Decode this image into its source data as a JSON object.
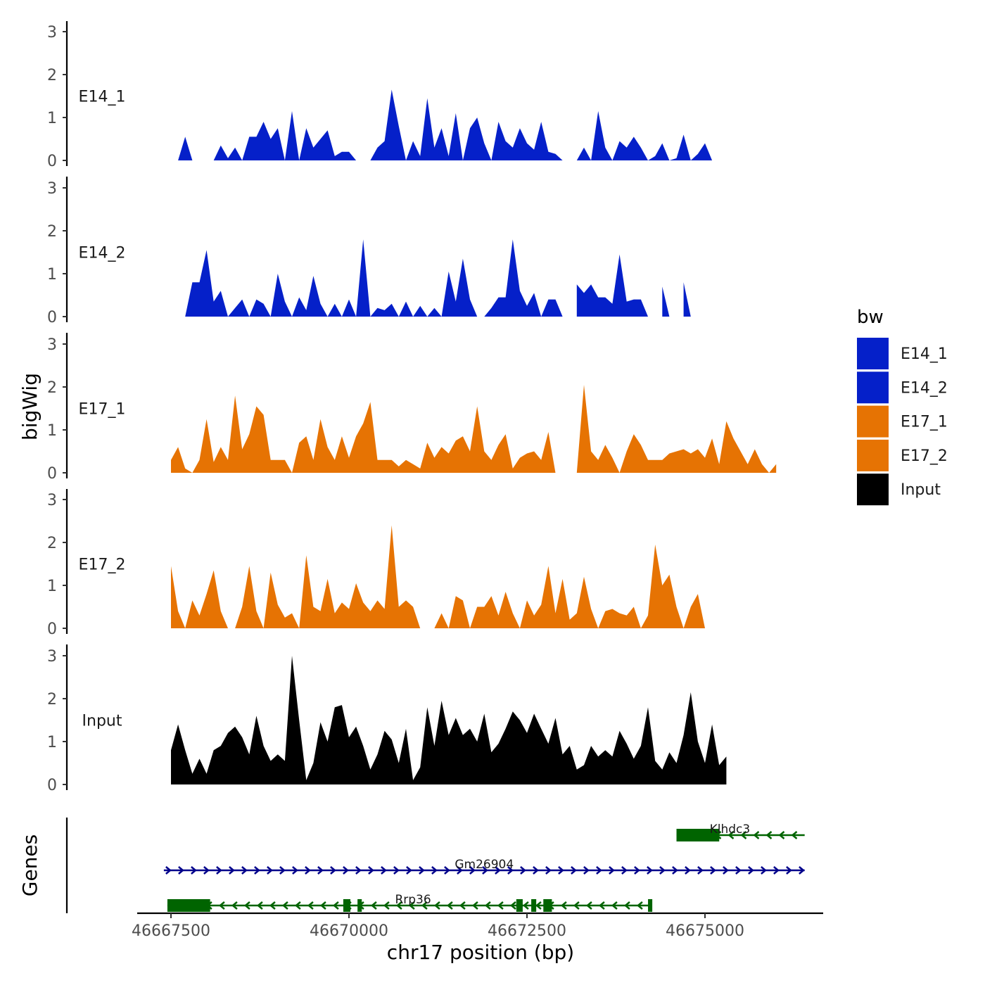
{
  "chart_data": {
    "type": "area",
    "title": "",
    "ylabel": "bigWig",
    "xlabel": "chr17 position (bp)",
    "xlim": [
      46667300,
      46676600
    ],
    "ylim": [
      0,
      3.2
    ],
    "y_ticks": [
      "0",
      "1",
      "2",
      "3"
    ],
    "x_ticks": [
      {
        "value": 46667500,
        "label": "46667500"
      },
      {
        "value": 46670000,
        "label": "46670000"
      },
      {
        "value": 46672500,
        "label": "46672500"
      },
      {
        "value": 46675000,
        "label": "46675000"
      }
    ],
    "legend": {
      "title": "bw",
      "placement": "right",
      "entries": [
        {
          "label": "E14_1",
          "color": "#0520C9"
        },
        {
          "label": "E14_2",
          "color": "#0520C9"
        },
        {
          "label": "E17_1",
          "color": "#E67303"
        },
        {
          "label": "E17_2",
          "color": "#E67303"
        },
        {
          "label": "Input",
          "color": "#000000"
        }
      ]
    },
    "x_positions": [
      46667500,
      46667600,
      46667700,
      46667800,
      46667900,
      46668000,
      46668100,
      46668200,
      46668300,
      46668400,
      46668500,
      46668600,
      46668700,
      46668800,
      46668900,
      46669000,
      46669100,
      46669200,
      46669300,
      46669400,
      46669500,
      46669600,
      46669700,
      46669800,
      46669900,
      46670000,
      46670100,
      46670200,
      46670300,
      46670400,
      46670500,
      46670600,
      46670700,
      46670800,
      46670900,
      46671000,
      46671100,
      46671200,
      46671300,
      46671400,
      46671500,
      46671600,
      46671700,
      46671800,
      46671900,
      46672000,
      46672100,
      46672200,
      46672300,
      46672400,
      46672500,
      46672600,
      46672700,
      46672800,
      46672900,
      46673000,
      46673100,
      46673200,
      46673300,
      46673400,
      46673500,
      46673600,
      46673700,
      46673800,
      46673900,
      46674000,
      46674100,
      46674200,
      46674300,
      46674400,
      46674500,
      46674600,
      46674700,
      46674800,
      46674900,
      46675000,
      46675100,
      46675200,
      46675300,
      46675400,
      46675500,
      46675600,
      46675700,
      46675800,
      46675900,
      46676000,
      46676100,
      46676200,
      46676300
    ],
    "series": [
      {
        "name": "E14_1",
        "color": "#0520C9",
        "values": [
          null,
          0.0,
          0.55,
          0.0,
          null,
          null,
          0.0,
          0.35,
          0.05,
          0.3,
          0.0,
          0.55,
          0.55,
          0.9,
          0.5,
          0.75,
          0.0,
          1.15,
          0.0,
          0.75,
          0.3,
          0.5,
          0.7,
          0.1,
          0.2,
          0.2,
          0.0,
          null,
          0.0,
          0.3,
          0.45,
          1.65,
          0.8,
          0.0,
          0.45,
          0.1,
          1.45,
          0.3,
          0.75,
          0.1,
          1.1,
          0.0,
          0.75,
          1.0,
          0.4,
          0.0,
          0.9,
          0.45,
          0.3,
          0.75,
          0.4,
          0.25,
          0.9,
          0.2,
          0.15,
          0.0,
          null,
          0.0,
          0.3,
          0.0,
          1.15,
          0.3,
          0.0,
          0.45,
          0.3,
          0.55,
          0.3,
          0.0,
          0.1,
          0.4,
          0.0,
          0.05,
          0.6,
          0.0,
          0.15,
          0.4,
          0.0,
          null,
          null,
          null,
          null,
          null,
          null,
          null,
          null,
          null,
          null,
          null,
          null
        ]
      },
      {
        "name": "E14_2",
        "color": "#0520C9",
        "values": [
          null,
          null,
          0.0,
          0.8,
          0.8,
          1.55,
          0.35,
          0.6,
          0.0,
          0.2,
          0.4,
          0.0,
          0.4,
          0.3,
          0.0,
          1.0,
          0.35,
          0.0,
          0.45,
          0.15,
          0.95,
          0.3,
          0.0,
          0.3,
          0.0,
          0.4,
          0.0,
          1.8,
          0.0,
          0.2,
          0.15,
          0.3,
          0.0,
          0.35,
          0.0,
          0.25,
          0.0,
          0.2,
          0.0,
          1.05,
          0.35,
          1.35,
          0.4,
          0.0,
          0.0,
          0.2,
          0.45,
          0.45,
          1.8,
          0.6,
          0.25,
          0.55,
          0.0,
          0.4,
          0.4,
          0.0,
          null,
          0.75,
          0.55,
          0.75,
          0.45,
          0.45,
          0.3,
          1.45,
          0.35,
          0.4,
          0.4,
          0.0,
          null,
          0.7,
          0.0,
          null,
          0.8,
          0.0,
          null,
          null,
          null,
          null,
          null,
          null,
          null,
          null,
          null,
          null,
          null,
          null,
          null,
          null,
          null
        ]
      },
      {
        "name": "E17_1",
        "color": "#E67303",
        "values": [
          0.3,
          0.6,
          0.1,
          0.0,
          0.3,
          1.25,
          0.25,
          0.6,
          0.3,
          1.8,
          0.55,
          0.9,
          1.55,
          1.35,
          0.3,
          0.3,
          0.3,
          0.0,
          0.7,
          0.85,
          0.3,
          1.25,
          0.6,
          0.3,
          0.85,
          0.35,
          0.85,
          1.15,
          1.65,
          0.3,
          0.3,
          0.3,
          0.15,
          0.3,
          0.2,
          0.1,
          0.7,
          0.35,
          0.6,
          0.45,
          0.75,
          0.85,
          0.5,
          1.55,
          0.5,
          0.3,
          0.65,
          0.9,
          0.1,
          0.35,
          0.45,
          0.5,
          0.3,
          0.95,
          0.0,
          null,
          null,
          0.0,
          2.05,
          0.5,
          0.3,
          0.65,
          0.35,
          0.0,
          0.5,
          0.9,
          0.65,
          0.3,
          0.3,
          0.3,
          0.45,
          0.5,
          0.55,
          0.45,
          0.55,
          0.35,
          0.8,
          0.2,
          1.2,
          0.8,
          0.5,
          0.2,
          0.55,
          0.2,
          0.0,
          0.2,
          null,
          null,
          null
        ]
      },
      {
        "name": "E17_2",
        "color": "#E67303",
        "values": [
          1.45,
          0.4,
          0.0,
          0.65,
          0.3,
          0.8,
          1.35,
          0.4,
          0.0,
          0.0,
          0.5,
          1.45,
          0.4,
          0.0,
          1.3,
          0.55,
          0.25,
          0.35,
          0.0,
          1.7,
          0.5,
          0.4,
          1.15,
          0.35,
          0.6,
          0.45,
          1.05,
          0.6,
          0.4,
          0.65,
          0.45,
          2.4,
          0.5,
          0.65,
          0.5,
          0.0,
          null,
          0.0,
          0.35,
          0.0,
          0.75,
          0.65,
          0.0,
          0.5,
          0.5,
          0.75,
          0.3,
          0.85,
          0.35,
          0.0,
          0.65,
          0.3,
          0.55,
          1.45,
          0.35,
          1.15,
          0.2,
          0.35,
          1.2,
          0.45,
          0.0,
          0.4,
          0.45,
          0.35,
          0.3,
          0.5,
          0.0,
          0.3,
          1.95,
          1.0,
          1.25,
          0.5,
          0.0,
          0.5,
          0.8,
          0.0,
          null,
          null,
          null,
          null,
          null,
          null,
          null,
          null,
          null,
          null,
          null,
          null,
          null
        ]
      },
      {
        "name": "Input",
        "color": "#000000",
        "values": [
          0.8,
          1.4,
          0.8,
          0.25,
          0.6,
          0.25,
          0.8,
          0.9,
          1.2,
          1.35,
          1.1,
          0.7,
          1.6,
          0.9,
          0.55,
          0.7,
          0.55,
          3.0,
          1.5,
          0.1,
          0.5,
          1.45,
          1.0,
          1.8,
          1.85,
          1.1,
          1.35,
          0.9,
          0.35,
          0.7,
          1.25,
          1.05,
          0.5,
          1.3,
          0.1,
          0.4,
          1.8,
          0.9,
          1.95,
          1.15,
          1.55,
          1.15,
          1.3,
          1.0,
          1.65,
          0.75,
          0.95,
          1.3,
          1.7,
          1.5,
          1.2,
          1.65,
          1.3,
          0.95,
          1.55,
          0.7,
          0.9,
          0.35,
          0.45,
          0.9,
          0.65,
          0.8,
          0.65,
          1.25,
          0.95,
          0.6,
          0.9,
          1.8,
          0.55,
          0.35,
          0.75,
          0.5,
          1.15,
          2.15,
          1.0,
          0.5,
          1.4,
          0.45,
          0.65,
          null,
          null,
          null,
          null,
          null,
          null,
          null,
          null,
          null,
          null
        ]
      }
    ],
    "genes": [
      {
        "name": "Klhdc3",
        "start": 46674600,
        "end": 46676400,
        "strand": "-",
        "color": "#006400",
        "exons": [
          [
            46674600,
            46675200
          ]
        ]
      },
      {
        "name": "Gm26904",
        "start": 46667400,
        "end": 46676400,
        "strand": "+",
        "color": "#00008B",
        "exons": []
      },
      {
        "name": "Rrp36",
        "start": 46667450,
        "end": 46674250,
        "strand": "-",
        "color": "#006400",
        "exons": [
          [
            46667450,
            46668050
          ],
          [
            46669920,
            46670020
          ],
          [
            46670120,
            46670180
          ],
          [
            46672350,
            46672440
          ],
          [
            46672560,
            46672630
          ],
          [
            46672730,
            46672850
          ],
          [
            46674200,
            46674260
          ]
        ]
      }
    ],
    "genes_label": "Genes"
  }
}
